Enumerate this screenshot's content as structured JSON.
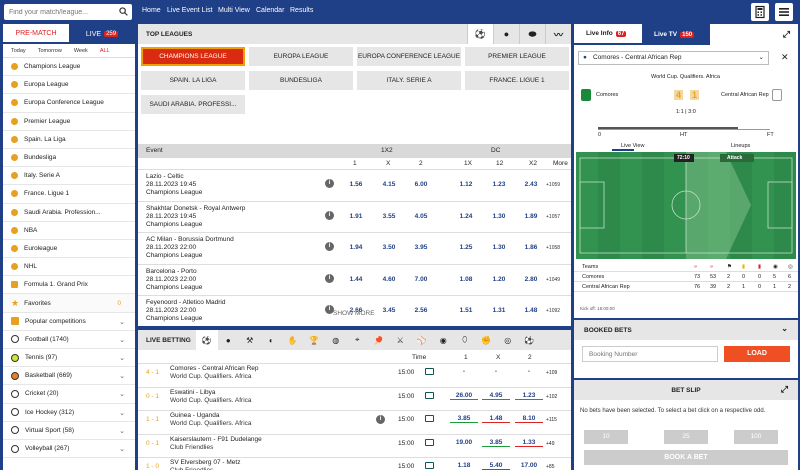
{
  "search": {
    "placeholder": "Find your match/league..."
  },
  "topnav": [
    "Home",
    "Live Event List",
    "Multi View",
    "Calendar",
    "Results"
  ],
  "sidebar": {
    "tab_prematch": "PRE-MATCH",
    "tab_live": "LIVE",
    "live_count": "259",
    "filters": [
      "Today",
      "Tomorrow",
      "Week",
      "ALL"
    ],
    "leagues": [
      "Champions League",
      "Europa League",
      "Europa Conference League",
      "Premier League",
      "Spain. La Liga",
      "Bundesliga",
      "Italy. Serie A",
      "France. Ligue 1",
      "Saudi Arabia. Profession...",
      "NBA",
      "Euroleague",
      "NHL",
      "Formula 1. Grand Prix"
    ],
    "favorites": "Favorites",
    "favorites_count": "0",
    "sports": [
      "Popular competitions",
      "Football (1740)",
      "Tennis (97)",
      "Basketball (669)",
      "Cricket (20)",
      "Ice Hockey (312)",
      "Virtual Sport (58)",
      "Volleyball (267)"
    ]
  },
  "top_leagues": {
    "title": "TOP LEAGUES",
    "buttons": [
      "CHAMPIONS LEAGUE",
      "EUROPA LEAGUE",
      "EUROPA CONFERENCE LEAGUE",
      "PREMIER LEAGUE",
      "SPAIN. LA LIGA",
      "BUNDESLIGA",
      "ITALY. SERIE A",
      "FRANCE. LIGUE 1",
      "SAUDI ARABIA. PROFESSI..."
    ]
  },
  "markets": {
    "event_label": "Event",
    "group1": "1X2",
    "group2": "DC",
    "cols": [
      "1",
      "X",
      "2",
      "1X",
      "12",
      "X2",
      "More"
    ]
  },
  "events": [
    {
      "teams": "Lazio - Celtic",
      "date": "28.11.2023 19:45",
      "league": "Champions League",
      "odds": [
        "1.56",
        "4.15",
        "6.00",
        "1.12",
        "1.23",
        "2.43"
      ],
      "more": "+1059"
    },
    {
      "teams": "Shakhtar Donetsk - Royal Antwerp",
      "date": "28.11.2023 19:45",
      "league": "Champions League",
      "odds": [
        "1.91",
        "3.55",
        "4.05",
        "1.24",
        "1.30",
        "1.89"
      ],
      "more": "+1057"
    },
    {
      "teams": "AC Milan - Borussia Dortmund",
      "date": "28.11.2023 22:00",
      "league": "Champions League",
      "odds": [
        "1.94",
        "3.50",
        "3.95",
        "1.25",
        "1.30",
        "1.86"
      ],
      "more": "+1058"
    },
    {
      "teams": "Barcelona - Porto",
      "date": "28.11.2023 22:00",
      "league": "Champions League",
      "odds": [
        "1.44",
        "4.60",
        "7.00",
        "1.08",
        "1.20",
        "2.80"
      ],
      "more": "+1049"
    },
    {
      "teams": "Feyenoord - Atletico Madrid",
      "date": "28.11.2023 22:00",
      "league": "Champions League",
      "odds": [
        "2.66",
        "3.45",
        "2.56",
        "1.51",
        "1.31",
        "1.48"
      ],
      "more": "+1092"
    }
  ],
  "show_more": "SHOW MORE",
  "live_betting": {
    "title": "LIVE BETTING",
    "cols": [
      "Time",
      "1",
      "X",
      "2"
    ],
    "rows": [
      {
        "score": "4 - 1",
        "teams": "Comores - Central African Rep",
        "league": "World Cup. Qualifiers. Africa",
        "time": "15:00",
        "odds": [
          "-",
          "-",
          "-"
        ],
        "more": "+109"
      },
      {
        "score": "0 - 1",
        "teams": "Eswatini - Libya",
        "league": "World Cup. Qualifiers. Africa",
        "time": "15:00",
        "odds": [
          "26.00",
          "4.95",
          "1.23"
        ],
        "more": "+102"
      },
      {
        "score": "1 - 1",
        "teams": "Guinea - Uganda",
        "league": "World Cup. Qualifiers. Africa",
        "time": "15:00",
        "odds": [
          "3.85",
          "1.48",
          "8.10"
        ],
        "more": "+115"
      },
      {
        "score": "0 - 1",
        "teams": "Kaiserslautern - F91 Dudelange",
        "league": "Club Friendlies",
        "time": "15:00",
        "odds": [
          "19.00",
          "3.85",
          "1.33"
        ],
        "more": "+49"
      },
      {
        "score": "1 - 0",
        "teams": "SV Elversberg 07 - Metz",
        "league": "Club Friendlies",
        "time": "15:00",
        "odds": [
          "1.18",
          "5.40",
          "17.00"
        ],
        "more": "+85"
      }
    ]
  },
  "live_info": {
    "tab_info": "Live Info",
    "info_count": "67",
    "tab_tv": "Live TV",
    "tv_count": "150",
    "selected_match": "Comores - Central African Rep",
    "competition": "World Cup. Qualifiers. Africa",
    "home": "Comores",
    "away": "Central African Rep",
    "score_home": "4",
    "score_away": "1",
    "period": "1:1 | 3:0",
    "timeline_labels": [
      "0",
      "HT",
      "FT"
    ],
    "view_tabs": [
      "Live View",
      "Lineups"
    ],
    "clock": "72:10",
    "attack_label": "Attack",
    "teams_header": "Teams",
    "stats": [
      {
        "team": "Comores",
        "vals": [
          "73",
          "53",
          "2",
          "0",
          "0",
          "5",
          "6"
        ]
      },
      {
        "team": "Central African Rep",
        "vals": [
          "76",
          "39",
          "2",
          "1",
          "0",
          "1",
          "2"
        ]
      }
    ],
    "kickoff": "Kick off: 15:00:00"
  },
  "booked_bets": {
    "title": "BOOKED BETS",
    "placeholder": "Booking Number",
    "load_label": "LOAD"
  },
  "bet_slip": {
    "title": "BET SLIP",
    "message": "No bets have been selected. To select a bet click on a respective odd.",
    "stakes": [
      "10",
      "25",
      "100"
    ],
    "book_label": "BOOK A BET"
  },
  "colors": {
    "brand": "#1f3f86",
    "accent": "#d92b10",
    "league_icon": "#e8a020"
  }
}
